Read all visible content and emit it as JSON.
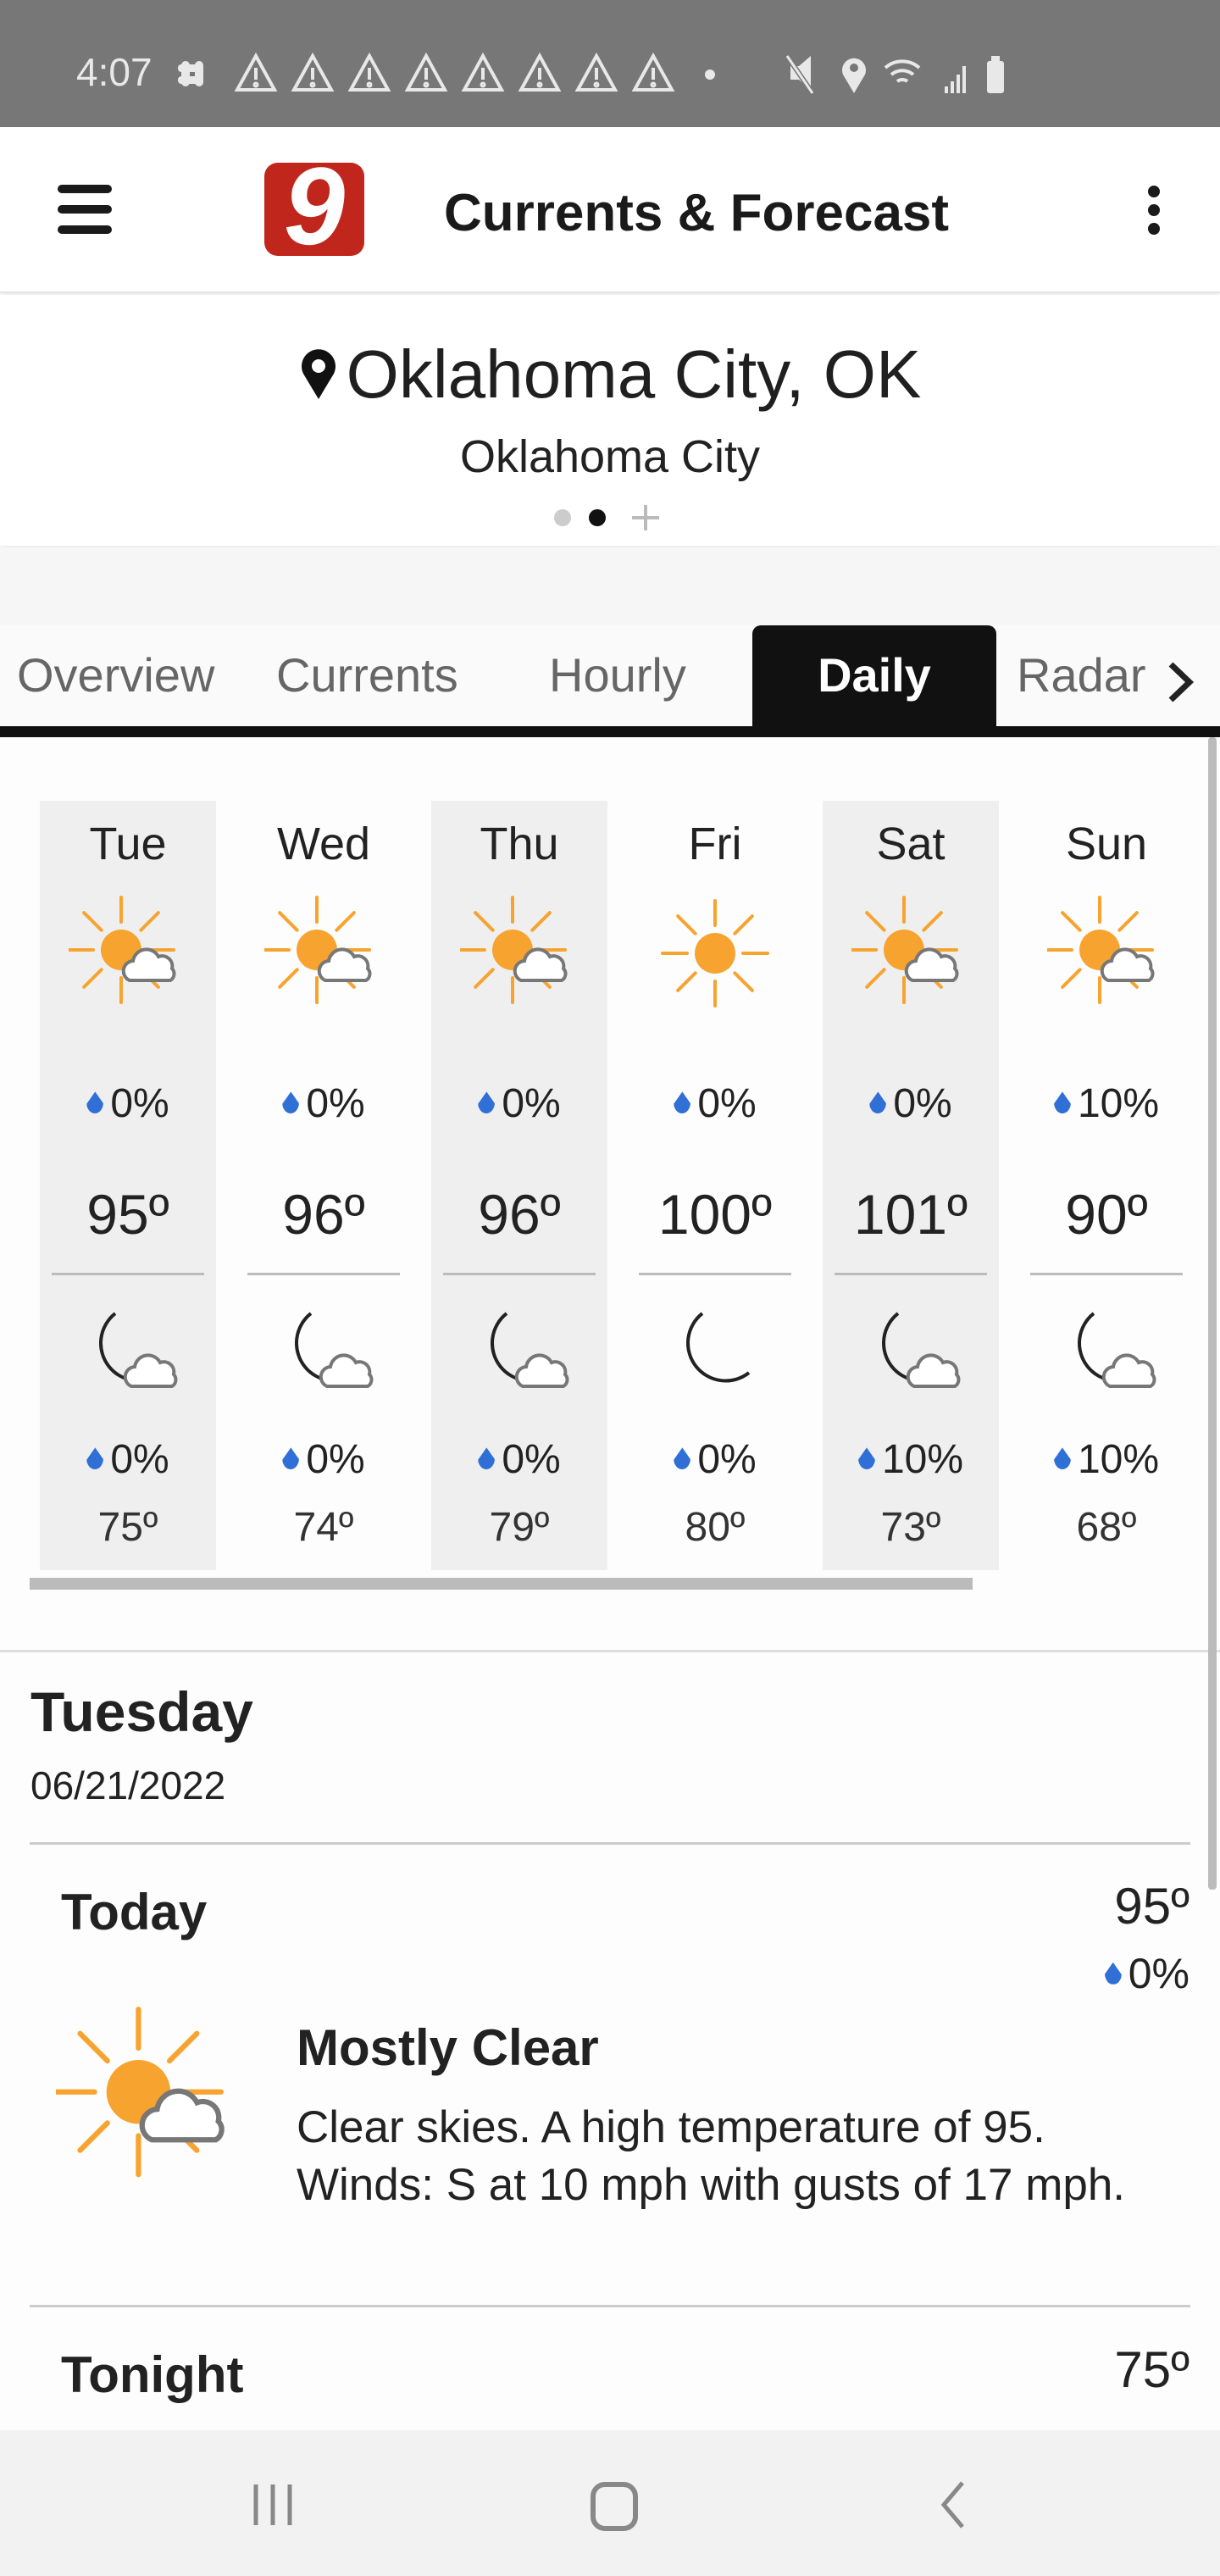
{
  "status_bar": {
    "time": "4:07",
    "alert_count": 8
  },
  "header": {
    "title": "Currents & Forecast",
    "logo": "9"
  },
  "location": {
    "name": "Oklahoma City, OK",
    "subtitle": "Oklahoma City",
    "pages": 3,
    "active_page": 2
  },
  "tabs": [
    {
      "label": "Overview"
    },
    {
      "label": "Currents"
    },
    {
      "label": "Hourly"
    },
    {
      "label": "Daily",
      "active": true
    },
    {
      "label": "Radar"
    }
  ],
  "daily": [
    {
      "day": "Tue",
      "day_icon": "partly-sunny",
      "day_precip": "0%",
      "high": "95º",
      "night_icon": "partly-cloudy-night",
      "night_precip": "0%",
      "low": "75º"
    },
    {
      "day": "Wed",
      "day_icon": "partly-sunny",
      "day_precip": "0%",
      "high": "96º",
      "night_icon": "partly-cloudy-night",
      "night_precip": "0%",
      "low": "74º"
    },
    {
      "day": "Thu",
      "day_icon": "partly-sunny",
      "day_precip": "0%",
      "high": "96º",
      "night_icon": "partly-cloudy-night",
      "night_precip": "0%",
      "low": "79º"
    },
    {
      "day": "Fri",
      "day_icon": "sunny",
      "day_precip": "0%",
      "high": "100º",
      "night_icon": "clear-night",
      "night_precip": "0%",
      "low": "80º"
    },
    {
      "day": "Sat",
      "day_icon": "partly-sunny",
      "day_precip": "0%",
      "high": "101º",
      "night_icon": "partly-cloudy-night",
      "night_precip": "10%",
      "low": "73º"
    },
    {
      "day": "Sun",
      "day_icon": "partly-sunny",
      "day_precip": "10%",
      "high": "90º",
      "night_icon": "partly-cloudy-night",
      "night_precip": "10%",
      "low": "68º"
    }
  ],
  "detail": {
    "day_name": "Tuesday",
    "date": "06/21/2022",
    "today": {
      "label": "Today",
      "temp": "95º",
      "precip": "0%",
      "condition": "Mostly Clear",
      "description": "Clear skies.  A high temperature of 95. Winds: S at 10 mph with gusts of 17 mph."
    },
    "tonight": {
      "label": "Tonight",
      "temp": "75º"
    }
  },
  "colors": {
    "sun": "#f7a330",
    "moon": "#fbd96b",
    "drop": "#2f6fd6",
    "logo": "#c0261c"
  }
}
